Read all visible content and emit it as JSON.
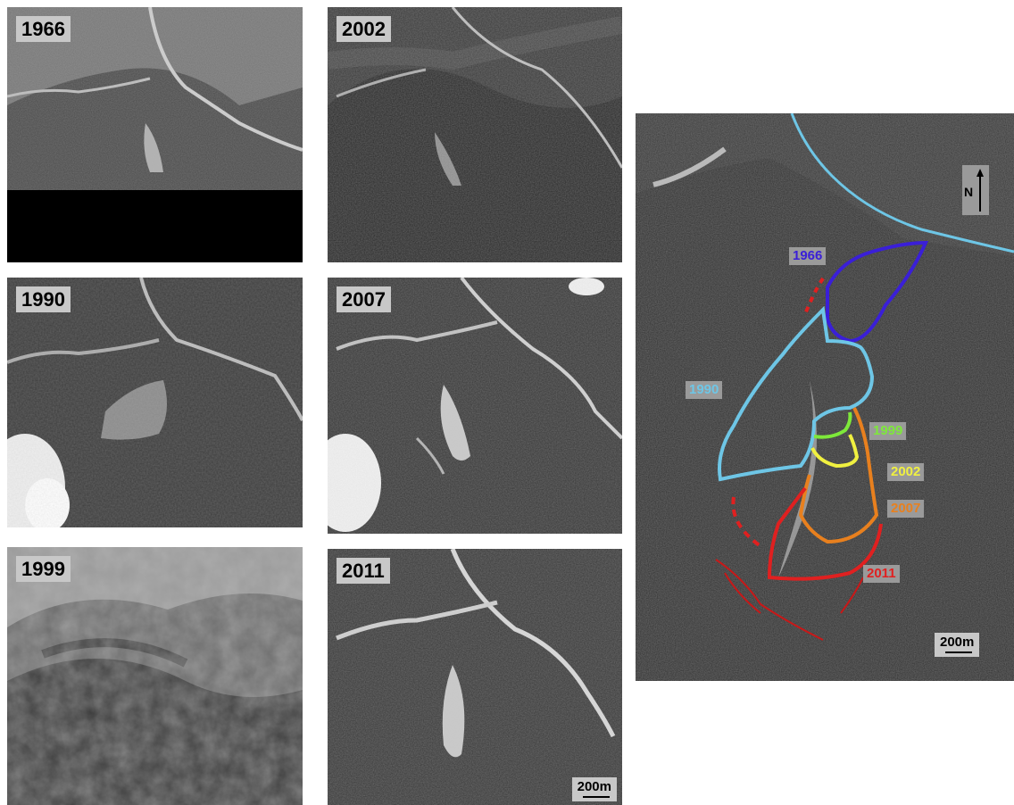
{
  "panels": [
    {
      "label": "1966"
    },
    {
      "label": "2002"
    },
    {
      "label": "1990"
    },
    {
      "label": "2007"
    },
    {
      "label": "1999"
    },
    {
      "label": "2011"
    }
  ],
  "scale_small": "200m",
  "map": {
    "north_label": "N",
    "scale_label": "200m",
    "outlines": [
      {
        "year": "1966",
        "color": "#3a1fd8"
      },
      {
        "year": "1990",
        "color": "#6ec6e6"
      },
      {
        "year": "1999",
        "color": "#7ee83a"
      },
      {
        "year": "2002",
        "color": "#f0f040"
      },
      {
        "year": "2007",
        "color": "#e8801e"
      },
      {
        "year": "2011",
        "color": "#e02020"
      }
    ]
  }
}
